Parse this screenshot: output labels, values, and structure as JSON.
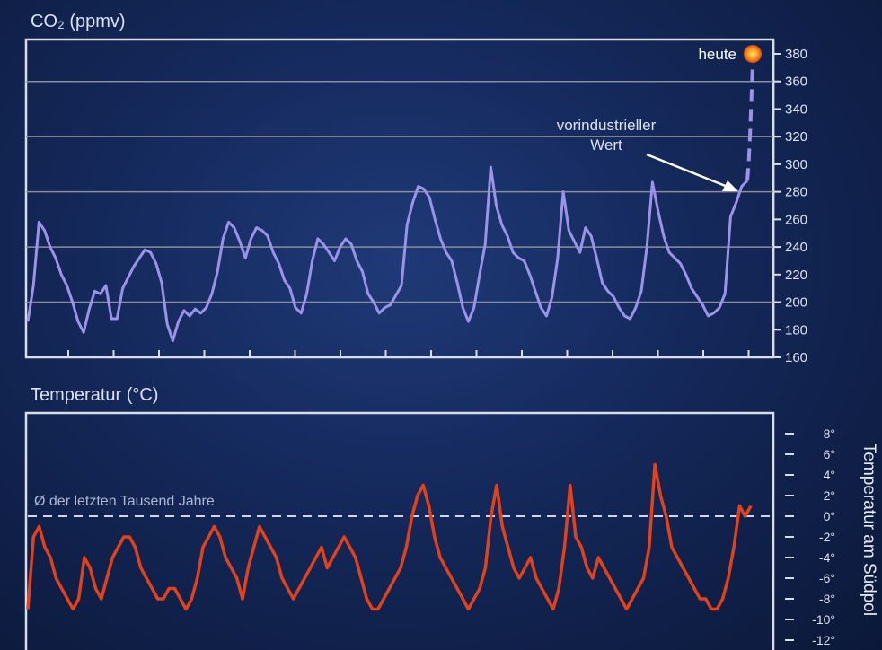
{
  "chart_data": [
    {
      "type": "line",
      "title": "CO₂ (ppmv)",
      "ylim": [
        160,
        380
      ],
      "yticks": [
        160,
        180,
        200,
        220,
        240,
        260,
        280,
        300,
        320,
        340,
        360,
        380
      ],
      "grid_lines_at": [
        200,
        240,
        280,
        320,
        360
      ],
      "series": [
        {
          "color": "#9b93e8",
          "values": [
            186,
            212,
            258,
            252,
            240,
            232,
            220,
            212,
            200,
            186,
            178,
            195,
            208,
            206,
            212,
            188,
            188,
            210,
            218,
            226,
            232,
            238,
            236,
            228,
            214,
            184,
            172,
            186,
            194,
            190,
            195,
            192,
            196,
            206,
            222,
            246,
            258,
            254,
            244,
            232,
            246,
            254,
            252,
            248,
            236,
            228,
            216,
            210,
            196,
            192,
            206,
            230,
            246,
            242,
            236,
            230,
            240,
            246,
            242,
            230,
            222,
            206,
            200,
            192,
            196,
            198,
            205,
            212,
            256,
            272,
            284,
            282,
            276,
            260,
            246,
            236,
            230,
            214,
            196,
            186,
            196,
            220,
            242,
            298,
            270,
            256,
            248,
            236,
            232,
            230,
            220,
            208,
            196,
            190,
            204,
            232,
            280,
            252,
            244,
            236,
            254,
            248,
            232,
            214,
            208,
            204,
            196,
            190,
            188,
            196,
            208,
            240,
            287,
            266,
            248,
            236,
            232,
            228,
            220,
            210,
            204,
            198,
            190,
            192,
            196,
            206,
            262,
            272,
            284,
            288
          ]
        },
        {
          "color": "#9b93e8",
          "style": "dashed",
          "values": [
            288,
            300,
            320,
            345,
            372
          ]
        }
      ],
      "annotations": [
        {
          "text": "heute",
          "value": 380
        },
        {
          "text": "vorindustrieller Wert",
          "value": 280
        }
      ]
    },
    {
      "type": "line",
      "title": "Temperatur (°C)",
      "ylim": [
        -12,
        8
      ],
      "yticks": [
        -12,
        -10,
        -8,
        -6,
        -4,
        -2,
        0,
        2,
        4,
        6,
        8
      ],
      "ytick_labels": [
        "-12°",
        "-10°",
        "-8°",
        "-6°",
        "-4°",
        "-2°",
        "0°",
        "2°",
        "4°",
        "6°",
        "8°"
      ],
      "ylabel": "Temperatur am Südpol",
      "reference_line": {
        "value": 0,
        "label": "Ø der letzten Tausend Jahre",
        "style": "dashed"
      },
      "series": [
        {
          "color": "#e0421c",
          "values": [
            -9,
            -2,
            -1,
            -3,
            -4,
            -6,
            -7,
            -8,
            -9,
            -8,
            -4,
            -5,
            -7,
            -8,
            -6,
            -4,
            -3,
            -2,
            -2,
            -3,
            -5,
            -6,
            -7,
            -8,
            -8,
            -7,
            -7,
            -8,
            -9,
            -8,
            -6,
            -3,
            -2,
            -1,
            -2,
            -4,
            -5,
            -6,
            -8,
            -5,
            -3,
            -1,
            -2,
            -3,
            -4,
            -6,
            -7,
            -8,
            -7,
            -6,
            -5,
            -4,
            -3,
            -5,
            -4,
            -3,
            -2,
            -3,
            -4,
            -6,
            -8,
            -9,
            -9,
            -8,
            -7,
            -6,
            -5,
            -3,
            0,
            2,
            3,
            1,
            -2,
            -4,
            -5,
            -6,
            -7,
            -8,
            -9,
            -8,
            -7,
            -5,
            0,
            3,
            -1,
            -3,
            -5,
            -6,
            -5,
            -4,
            -6,
            -7,
            -8,
            -9,
            -7,
            -3,
            3,
            -2,
            -3,
            -5,
            -6,
            -4,
            -5,
            -6,
            -7,
            -8,
            -9,
            -8,
            -7,
            -6,
            -3,
            5,
            2,
            0,
            -3,
            -4,
            -5,
            -6,
            -7,
            -8,
            -8,
            -9,
            -9,
            -8,
            -6,
            -3,
            1,
            0,
            1
          ]
        }
      ]
    }
  ]
}
